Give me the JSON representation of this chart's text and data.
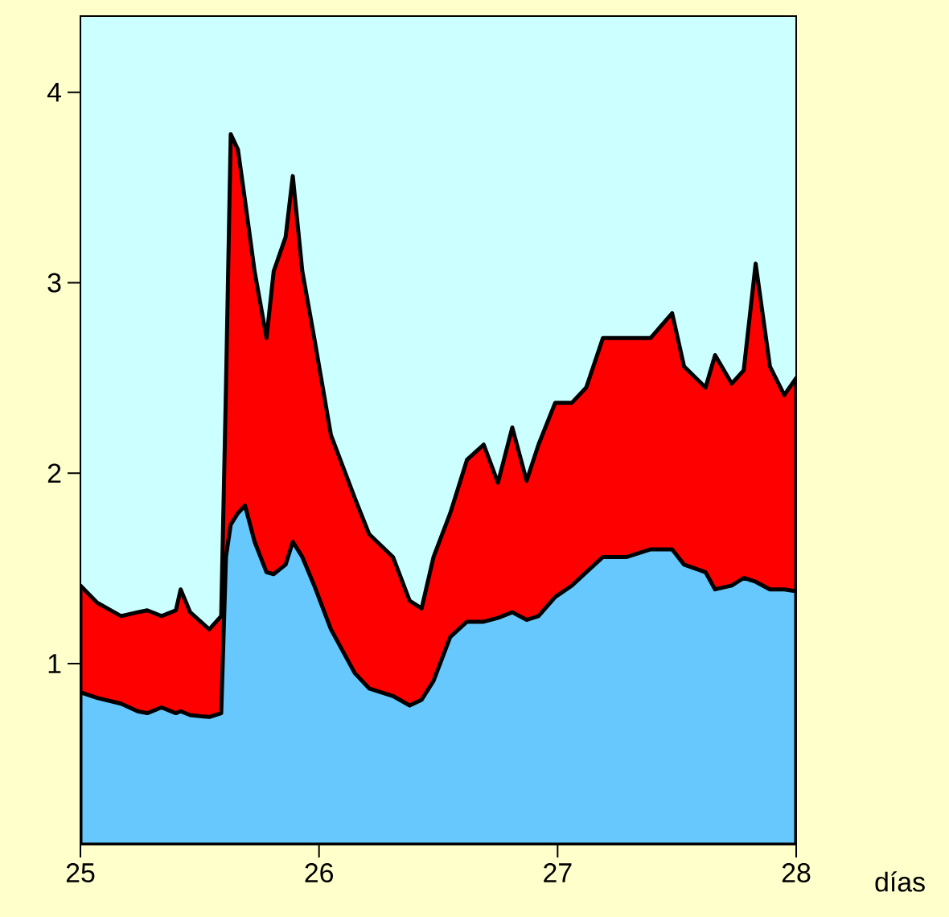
{
  "chart_data": {
    "type": "area",
    "xlabel": "días",
    "x": [
      25.0,
      25.07,
      25.17,
      25.24,
      25.28,
      25.34,
      25.4,
      25.42,
      25.46,
      25.54,
      25.59,
      25.61,
      25.63,
      25.66,
      25.69,
      25.73,
      25.78,
      25.81,
      25.86,
      25.89,
      25.93,
      25.98,
      26.05,
      26.15,
      26.21,
      26.31,
      26.38,
      26.43,
      26.48,
      26.55,
      26.62,
      26.69,
      26.75,
      26.81,
      26.87,
      26.92,
      26.99,
      27.06,
      27.12,
      27.19,
      27.29,
      27.39,
      27.48,
      27.53,
      27.62,
      27.66,
      27.73,
      27.78,
      27.83,
      27.89,
      27.95,
      28.0
    ],
    "series": [
      {
        "color": "#ff0000",
        "values": [
          1.41,
          1.32,
          1.25,
          1.27,
          1.28,
          1.25,
          1.28,
          1.39,
          1.27,
          1.18,
          1.25,
          2.45,
          3.78,
          3.7,
          3.43,
          3.06,
          2.71,
          3.06,
          3.24,
          3.56,
          3.06,
          2.71,
          2.2,
          1.87,
          1.68,
          1.56,
          1.33,
          1.29,
          1.56,
          1.79,
          2.07,
          2.15,
          1.95,
          2.24,
          1.96,
          2.15,
          2.37,
          2.37,
          2.45,
          2.71,
          2.71,
          2.71,
          2.84,
          2.56,
          2.45,
          2.62,
          2.47,
          2.54,
          3.1,
          2.56,
          2.41,
          2.5
        ]
      },
      {
        "color": "#66c8fc",
        "values": [
          0.85,
          0.82,
          0.79,
          0.75,
          0.74,
          0.77,
          0.74,
          0.75,
          0.73,
          0.72,
          0.74,
          1.56,
          1.73,
          1.79,
          1.83,
          1.64,
          1.48,
          1.47,
          1.52,
          1.64,
          1.56,
          1.41,
          1.18,
          0.95,
          0.87,
          0.83,
          0.78,
          0.81,
          0.91,
          1.14,
          1.22,
          1.22,
          1.24,
          1.27,
          1.23,
          1.25,
          1.35,
          1.41,
          1.48,
          1.56,
          1.56,
          1.6,
          1.6,
          1.52,
          1.48,
          1.39,
          1.41,
          1.45,
          1.43,
          1.39,
          1.39,
          1.38
        ]
      }
    ],
    "xlim": [
      25,
      28
    ],
    "xticks": [
      25,
      26,
      27,
      28
    ],
    "ylim": [
      0.05,
      4.4
    ],
    "yticks": [
      1,
      2,
      3,
      4
    ]
  }
}
